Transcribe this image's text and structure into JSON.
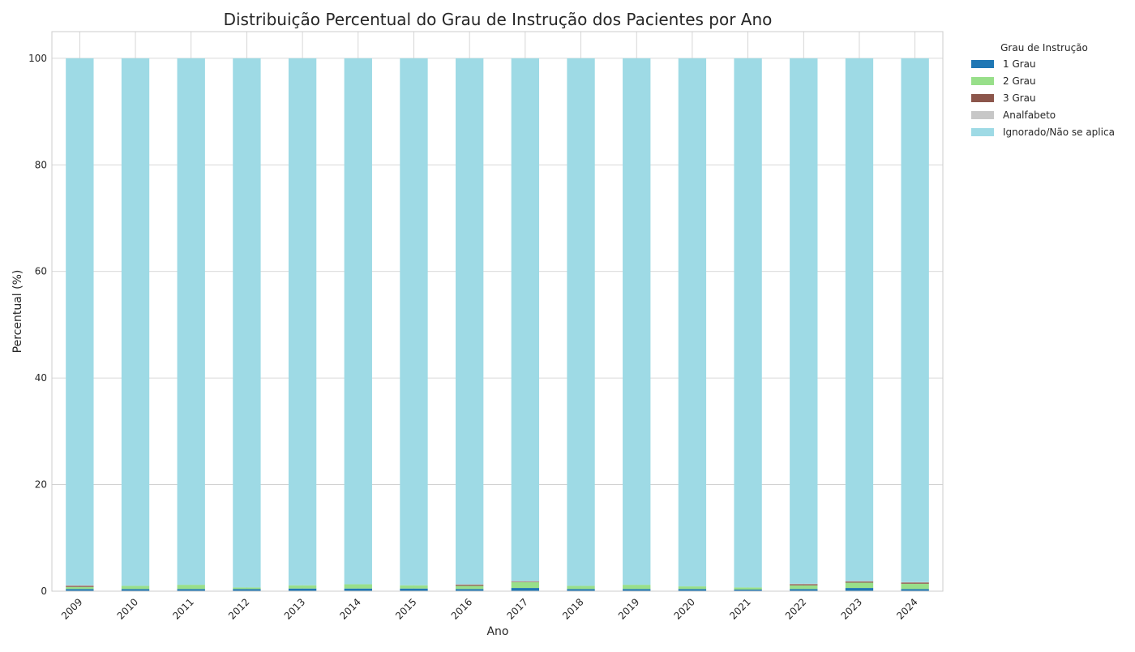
{
  "chart_data": {
    "type": "bar",
    "stacked": true,
    "title": "Distribuição Percentual do Grau de Instrução dos Pacientes por Ano",
    "xlabel": "Ano",
    "ylabel": "Percentual (%)",
    "ylim": [
      0,
      105
    ],
    "yticks": [
      0,
      20,
      40,
      60,
      80,
      100
    ],
    "grid": true,
    "legend_title": "Grau de Instrução",
    "legend_position": "outside-top-right",
    "categories": [
      "2009",
      "2010",
      "2011",
      "2012",
      "2013",
      "2014",
      "2015",
      "2016",
      "2017",
      "2018",
      "2019",
      "2020",
      "2021",
      "2022",
      "2023",
      "2024"
    ],
    "series": [
      {
        "name": "1 Grau",
        "color": "#1f77b4",
        "values": [
          0.4,
          0.4,
          0.4,
          0.4,
          0.5,
          0.5,
          0.5,
          0.4,
          0.6,
          0.4,
          0.4,
          0.4,
          0.3,
          0.4,
          0.6,
          0.4
        ]
      },
      {
        "name": "2 Grau",
        "color": "#98df8a",
        "values": [
          0.4,
          0.6,
          0.8,
          0.3,
          0.6,
          0.8,
          0.6,
          0.6,
          1.1,
          0.6,
          0.8,
          0.5,
          0.4,
          0.7,
          1.0,
          1.0
        ]
      },
      {
        "name": "3 Grau",
        "color": "#8c564b",
        "values": [
          0.2,
          0.0,
          0.0,
          0.0,
          0.0,
          0.0,
          0.0,
          0.2,
          0.1,
          0.0,
          0.0,
          0.0,
          0.0,
          0.2,
          0.2,
          0.2
        ]
      },
      {
        "name": "Analfabeto",
        "color": "#c7c7c7",
        "values": [
          0.1,
          0.0,
          0.0,
          0.0,
          0.0,
          0.0,
          0.0,
          0.1,
          0.1,
          0.0,
          0.0,
          0.0,
          0.0,
          0.1,
          0.1,
          0.1
        ]
      },
      {
        "name": "Ignorado/Não se aplica",
        "color": "#9edae5",
        "values": [
          98.9,
          99.0,
          98.8,
          99.3,
          98.9,
          98.7,
          98.9,
          98.7,
          98.1,
          99.0,
          98.8,
          99.1,
          99.3,
          98.6,
          98.1,
          98.3
        ]
      }
    ]
  }
}
